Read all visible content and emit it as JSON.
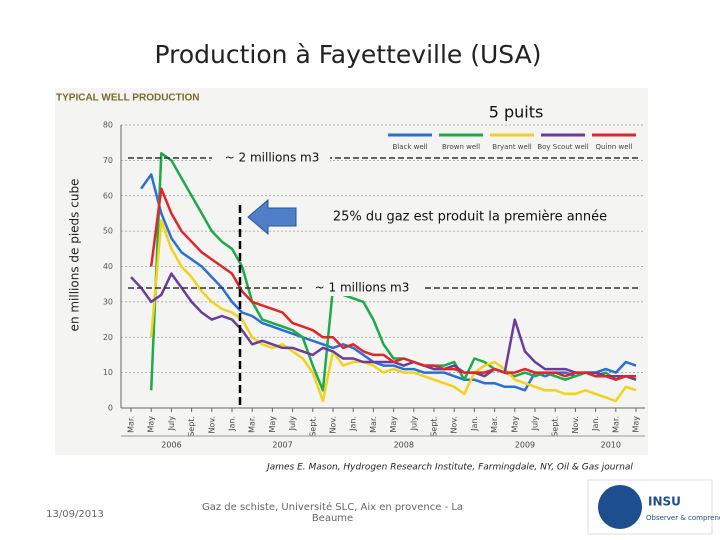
{
  "slide_title": "Production à Fayetteville (USA)",
  "chart_data": {
    "type": "line",
    "title": "TYPICAL WELL PRODUCTION",
    "subtitle": "5 puits",
    "y_label": "en millions de pieds cube",
    "categories": [
      "Mar.",
      null,
      "May",
      null,
      "July",
      null,
      "Sept.",
      null,
      "Nov.",
      null,
      "Jan.",
      null,
      "Mar.",
      null,
      "May",
      null,
      "July",
      null,
      "Sept.",
      null,
      "Nov.",
      null,
      "Jan.",
      null,
      "Mar.",
      null,
      "May",
      null,
      "July",
      null,
      "Sept.",
      null,
      "Nov.",
      null,
      "Jan.",
      null,
      "Mar.",
      null,
      "May",
      null,
      "July",
      null,
      "Sept.",
      null,
      "Nov.",
      null,
      "Jan.",
      null,
      "Mar.",
      null,
      "May"
    ],
    "years": [
      "2006",
      "2007",
      "2008",
      "2009",
      "2010"
    ],
    "ylim": [
      0,
      80
    ],
    "yticks": [
      0,
      10,
      20,
      30,
      40,
      50,
      60,
      70,
      80
    ],
    "grid": true,
    "series": [
      {
        "name": "Black well",
        "color": "#2a6fd6",
        "values": [
          null,
          62,
          66,
          55,
          48,
          44,
          42,
          40,
          37,
          34,
          30,
          27,
          26,
          24,
          23,
          22,
          21,
          20,
          19,
          18,
          17,
          18,
          17,
          15,
          13,
          12,
          12,
          11,
          11,
          10,
          10,
          10,
          9,
          8,
          8,
          7,
          7,
          6,
          6,
          5,
          10,
          9,
          10,
          10,
          9,
          10,
          10,
          11,
          10,
          13,
          12
        ]
      },
      {
        "name": "Brown well",
        "color": "#1faa4a",
        "values": [
          null,
          null,
          5,
          72,
          70,
          65,
          60,
          55,
          50,
          47,
          45,
          40,
          30,
          25,
          24,
          23,
          22,
          20,
          12,
          5,
          34,
          32,
          31,
          30,
          25,
          18,
          14,
          14,
          13,
          12,
          12,
          12,
          13,
          8,
          14,
          13,
          11,
          10,
          9,
          10,
          9,
          10,
          9,
          8,
          9,
          10,
          9,
          10,
          8,
          9,
          8
        ]
      },
      {
        "name": "Bryant well",
        "color": "#f2d21b",
        "values": [
          null,
          null,
          20,
          53,
          45,
          40,
          37,
          33,
          30,
          28,
          27,
          25,
          20,
          18,
          17,
          18,
          16,
          14,
          10,
          2,
          16,
          12,
          13,
          13,
          12,
          10,
          11,
          10,
          10,
          9,
          8,
          7,
          6,
          4,
          10,
          12,
          13,
          11,
          8,
          7,
          6,
          5,
          5,
          4,
          4,
          5,
          4,
          3,
          2,
          6,
          5
        ]
      },
      {
        "name": "Boy Scout well",
        "color": "#6a3d9a",
        "values": [
          37,
          34,
          30,
          32,
          38,
          34,
          30,
          27,
          25,
          26,
          25,
          22,
          18,
          19,
          18,
          17,
          17,
          16,
          15,
          17,
          16,
          14,
          14,
          13,
          13,
          13,
          13,
          12,
          13,
          12,
          11,
          11,
          12,
          10,
          10,
          9,
          11,
          10,
          25,
          16,
          13,
          11,
          11,
          11,
          10,
          10,
          10,
          9,
          9,
          9,
          8
        ]
      },
      {
        "name": "Quinn well",
        "color": "#e0262b",
        "values": [
          null,
          null,
          40,
          62,
          55,
          50,
          47,
          44,
          42,
          40,
          38,
          33,
          30,
          29,
          28,
          27,
          24,
          23,
          22,
          20,
          20,
          17,
          18,
          16,
          15,
          15,
          13,
          14,
          13,
          12,
          12,
          11,
          11,
          10,
          10,
          10,
          11,
          10,
          10,
          11,
          10,
          10,
          10,
          9,
          10,
          10,
          9,
          9,
          8,
          9,
          9
        ]
      }
    ],
    "annotations": [
      "~ 2 millions m3",
      "25% du gaz est produit la première année",
      "~ 1 millions m3"
    ],
    "source": "James E. Mason, Hydrogen Research Institute, Farmingdale, NY, Oil & Gas journal"
  },
  "footer": {
    "date": "13/09/2013",
    "event": "Gaz de schiste, Université SLC, Aix en provence - La Beaume",
    "logo_name": "INSU",
    "logo_tagline": "Observer & comprendre"
  }
}
